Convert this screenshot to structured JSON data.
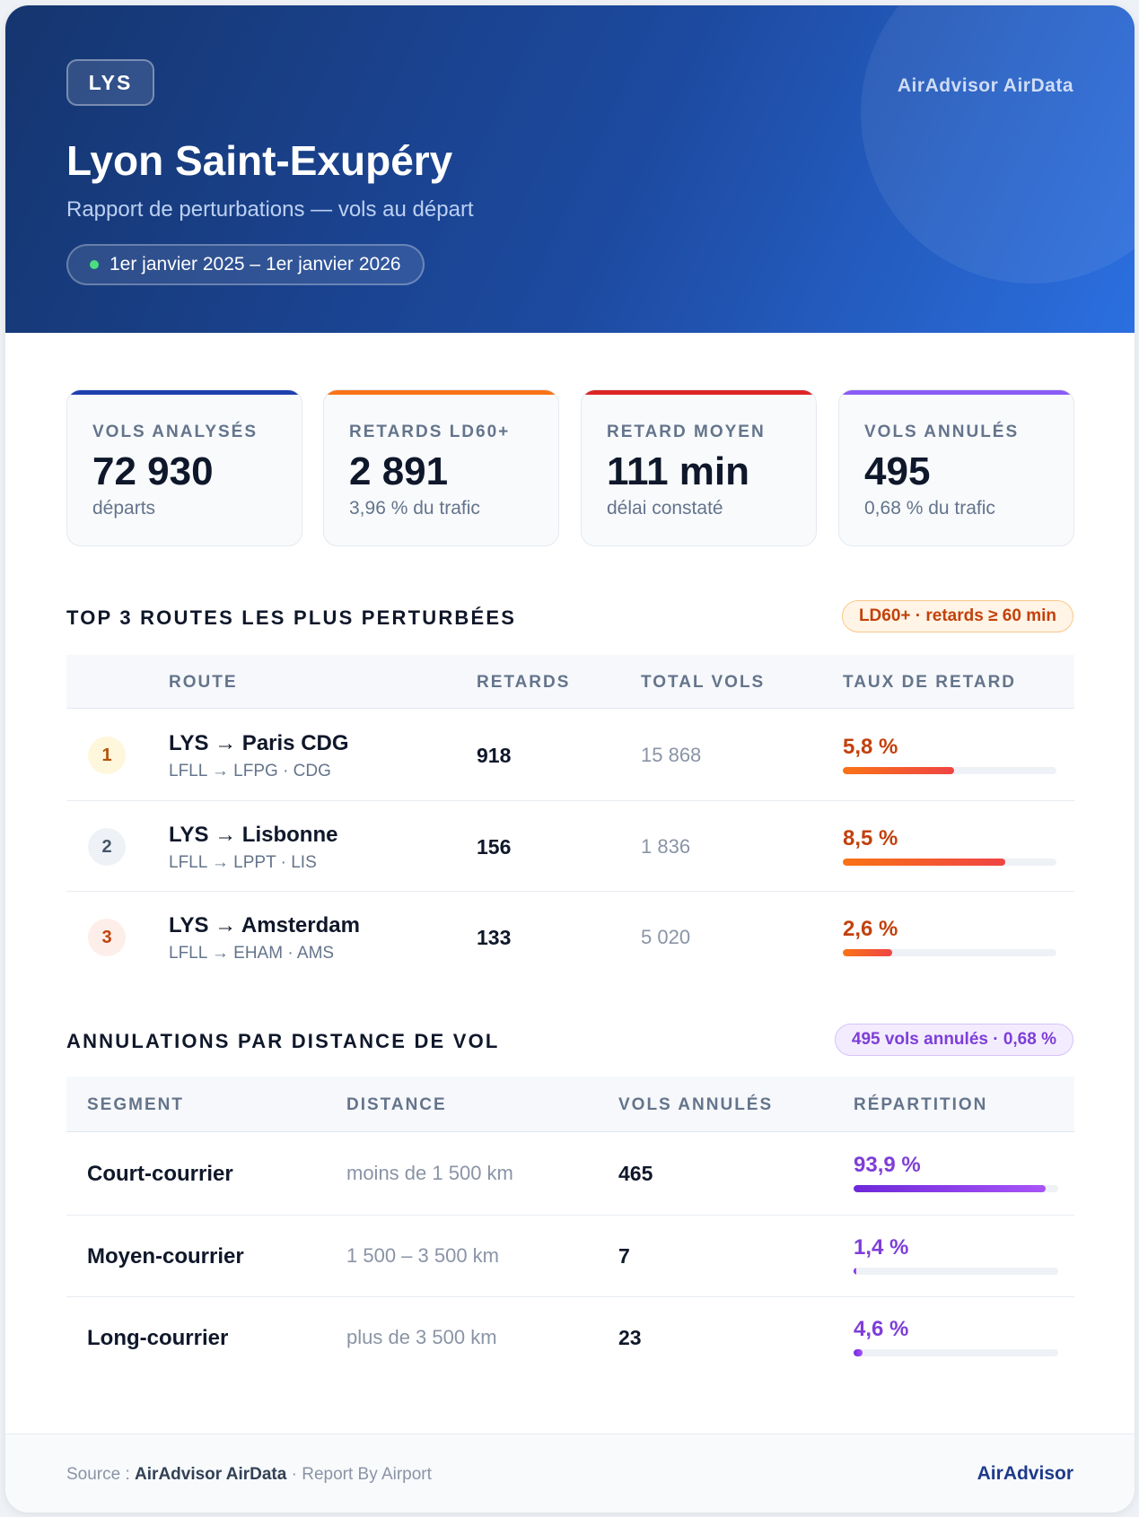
{
  "header": {
    "code": "LYS",
    "brand": "AirAdvisor AirData",
    "title": "Lyon Saint-Exupéry",
    "subtitle": "Rapport de perturbations — vols au départ",
    "period": "1er janvier 2025 – 1er janvier 2026"
  },
  "stats": [
    {
      "label": "VOLS ANALYSÉS",
      "value": "72 930",
      "sub": "départs",
      "color": "#1e40af"
    },
    {
      "label": "RETARDS LD60+",
      "value": "2 891",
      "sub": "3,96 % du trafic",
      "color": "#f97316"
    },
    {
      "label": "RETARD MOYEN",
      "value": "111 min",
      "sub": "délai constaté",
      "color": "#dc2626"
    },
    {
      "label": "VOLS ANNULÉS",
      "value": "495",
      "sub": "0,68 % du trafic",
      "color": "#8b5cf6"
    }
  ],
  "routes_section": {
    "title": "TOP 3 ROUTES LES PLUS PERTURBÉES",
    "tag": "LD60+ · retards ≥ 60 min",
    "headers": {
      "route": "ROUTE",
      "delays": "RETARDS",
      "total": "TOTAL VOLS",
      "rate": "TAUX DE RETARD"
    },
    "rows": [
      {
        "rank": "1",
        "route": "LYS → Paris CDG",
        "codes": "LFLL → LFPG · CDG",
        "delays": "918",
        "total": "15 868",
        "rate": "5,8 %",
        "rate_value": 5.8,
        "rank_bg": "#fef7dc",
        "rank_color": "#b45309"
      },
      {
        "rank": "2",
        "route": "LYS → Lisbonne",
        "codes": "LFLL → LPPT · LIS",
        "delays": "156",
        "total": "1 836",
        "rate": "8,5 %",
        "rate_value": 8.5,
        "rank_bg": "#eef2f7",
        "rank_color": "#475569"
      },
      {
        "rank": "3",
        "route": "LYS → Amsterdam",
        "codes": "LFLL → EHAM · AMS",
        "delays": "133",
        "total": "5 020",
        "rate": "2,6 %",
        "rate_value": 2.6,
        "rank_bg": "#fdeee9",
        "rank_color": "#c2410c"
      }
    ]
  },
  "cancel_section": {
    "title": "ANNULATIONS PAR DISTANCE DE VOL",
    "tag": "495 vols annulés · 0,68 %",
    "headers": {
      "segment": "SEGMENT",
      "distance": "DISTANCE",
      "cancelled": "VOLS ANNULÉS",
      "share": "RÉPARTITION"
    },
    "rows": [
      {
        "segment": "Court-courrier",
        "distance": "moins de 1 500 km",
        "cancelled": "465",
        "share": "93,9 %",
        "share_value": 93.9
      },
      {
        "segment": "Moyen-courrier",
        "distance": "1 500 – 3 500 km",
        "cancelled": "7",
        "share": "1,4 %",
        "share_value": 1.4
      },
      {
        "segment": "Long-courrier",
        "distance": "plus de 3 500 km",
        "cancelled": "23",
        "share": "4,6 %",
        "share_value": 4.6
      }
    ]
  },
  "footer": {
    "source_prefix": "Source :",
    "source_name": "AirAdvisor AirData",
    "source_suffix": "· Report By Airport",
    "brand": "AirAdvisor"
  },
  "colors": {
    "rate_text": "#c2410c",
    "share_text": "#7e3ed8"
  }
}
